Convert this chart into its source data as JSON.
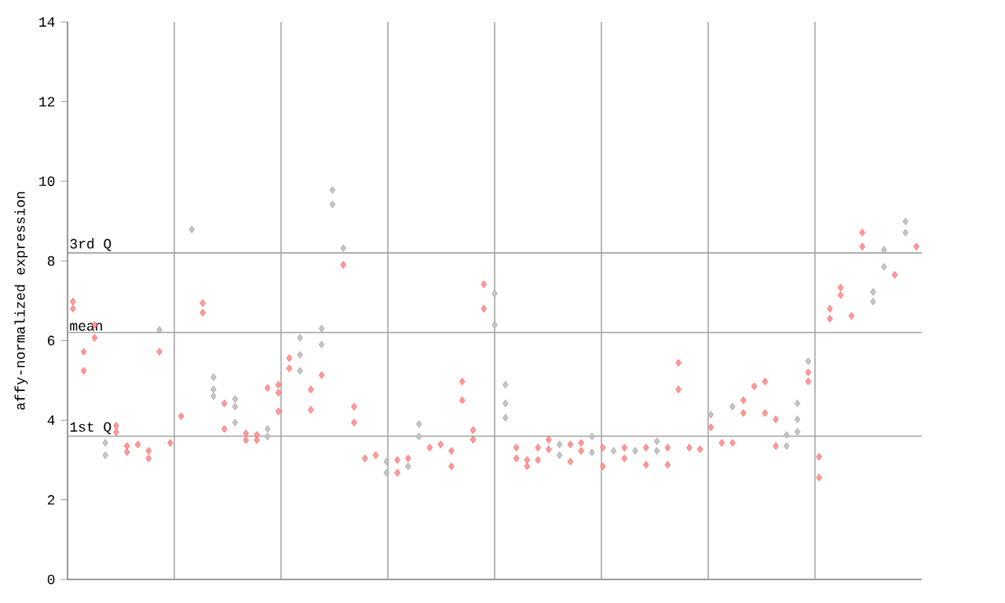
{
  "chart_data": {
    "type": "scatter",
    "ylabel": "affy-normalized expression",
    "categories": [
      null,
      null,
      null,
      null,
      null,
      null,
      null,
      null,
      null,
      null,
      null,
      null,
      null,
      null,
      null,
      null,
      null,
      null,
      null,
      null,
      null,
      null,
      null,
      null,
      null,
      null,
      null,
      null,
      null,
      null,
      null,
      null,
      null,
      null,
      null,
      null,
      null,
      null,
      null,
      null,
      null,
      null,
      null,
      null,
      null,
      null,
      null,
      null,
      null,
      null,
      null,
      null,
      null,
      null,
      null,
      null,
      null,
      null,
      null,
      null,
      null,
      null,
      null,
      null,
      null,
      null,
      null,
      null,
      null,
      null,
      null,
      null,
      null,
      null,
      null,
      null,
      null,
      null,
      null
    ],
    "ylim": [
      0,
      14
    ],
    "yticks": [
      0,
      2,
      4,
      6,
      8,
      10,
      12,
      14
    ],
    "grid": "x",
    "tick_labels": "y",
    "marker": "diamond",
    "ref_lines": [
      {
        "axis": "y",
        "value": 8.2,
        "label": "3rd Q",
        "color": "#a0a0a0"
      },
      {
        "axis": "y",
        "value": 6.2,
        "label": "mean",
        "color": "#a0a0a0"
      },
      {
        "axis": "y",
        "value": 3.6,
        "label": "1st Q",
        "color": "#a0a0a0"
      }
    ],
    "series": [
      {
        "color": "#a0a0a0",
        "values": [
          null,
          null,
          null,
          3.43,
          null,
          null,
          null,
          null,
          6.27,
          null,
          null,
          8.79,
          null,
          5.08,
          null,
          4.53,
          null,
          null,
          3.78,
          null,
          null,
          6.07,
          null,
          6.3,
          9.78,
          8.32,
          null,
          null,
          null,
          2.96,
          null,
          2.84,
          3.9,
          null,
          null,
          null,
          null,
          null,
          null,
          7.18,
          4.89,
          null,
          null,
          null,
          null,
          3.39,
          null,
          null,
          3.59,
          null,
          3.23,
          null,
          3.23,
          null,
          3.47,
          null,
          null,
          null,
          null,
          4.14,
          null,
          4.34,
          null,
          null,
          null,
          null,
          3.63,
          4.42,
          5.48,
          null,
          null,
          null,
          null,
          null,
          7.22,
          8.28,
          null,
          8.99,
          null
        ]
      },
      {
        "color": "#a0a0a0",
        "values": [
          null,
          null,
          null,
          3.12,
          null,
          null,
          null,
          null,
          null,
          null,
          null,
          null,
          null,
          4.77,
          null,
          4.34,
          null,
          null,
          3.59,
          null,
          null,
          5.64,
          null,
          5.9,
          9.42,
          null,
          null,
          null,
          null,
          2.68,
          null,
          null,
          3.59,
          null,
          null,
          null,
          null,
          null,
          null,
          6.39,
          4.42,
          null,
          null,
          null,
          null,
          3.12,
          null,
          null,
          3.19,
          null,
          null,
          null,
          null,
          null,
          3.23,
          null,
          null,
          null,
          null,
          null,
          null,
          null,
          null,
          null,
          null,
          null,
          3.35,
          4.02,
          null,
          null,
          null,
          null,
          null,
          null,
          6.98,
          7.85,
          null,
          8.71,
          null
        ]
      },
      {
        "color": "#a0a0a0",
        "values": [
          null,
          null,
          null,
          null,
          null,
          null,
          null,
          null,
          null,
          null,
          null,
          null,
          null,
          4.6,
          null,
          3.94,
          null,
          null,
          null,
          null,
          null,
          5.24,
          null,
          null,
          null,
          null,
          null,
          null,
          null,
          null,
          null,
          null,
          null,
          null,
          null,
          null,
          null,
          null,
          null,
          null,
          4.06,
          null,
          null,
          null,
          null,
          null,
          null,
          null,
          null,
          null,
          null,
          null,
          null,
          null,
          null,
          null,
          null,
          null,
          null,
          null,
          null,
          null,
          null,
          null,
          null,
          null,
          null,
          3.71,
          null,
          null,
          null,
          null,
          null,
          null,
          null,
          null,
          null,
          null,
          null
        ]
      },
      {
        "color": "#ff5a5a",
        "values": [
          6.98,
          5.72,
          6.39,
          null,
          3.86,
          3.35,
          3.39,
          3.23,
          5.72,
          3.43,
          4.1,
          null,
          6.94,
          null,
          4.42,
          null,
          3.67,
          3.63,
          4.81,
          4.89,
          5.56,
          null,
          4.77,
          5.13,
          null,
          7.9,
          4.34,
          3.04,
          3.12,
          null,
          3.0,
          3.04,
          null,
          3.31,
          3.39,
          3.23,
          4.97,
          3.75,
          7.41,
          null,
          null,
          3.31,
          3.0,
          3.31,
          3.51,
          null,
          3.39,
          3.43,
          null,
          3.31,
          null,
          3.31,
          null,
          3.31,
          null,
          3.31,
          5.44,
          3.31,
          3.27,
          3.82,
          3.43,
          3.43,
          4.5,
          4.85,
          4.97,
          4.02,
          null,
          null,
          5.2,
          3.08,
          6.8,
          7.33,
          6.62,
          8.71,
          null,
          null,
          7.65,
          null,
          8.36
        ]
      },
      {
        "color": "#ff5a5a",
        "values": [
          6.8,
          5.24,
          6.07,
          null,
          3.7,
          3.2,
          null,
          3.04,
          null,
          null,
          null,
          null,
          6.7,
          null,
          3.78,
          null,
          3.5,
          3.5,
          null,
          4.69,
          5.3,
          null,
          4.26,
          null,
          null,
          null,
          3.94,
          null,
          null,
          null,
          2.68,
          null,
          null,
          null,
          null,
          2.84,
          4.5,
          3.51,
          6.8,
          null,
          null,
          3.04,
          2.84,
          3.0,
          3.27,
          null,
          2.96,
          3.23,
          null,
          2.84,
          null,
          3.04,
          null,
          2.88,
          null,
          2.88,
          4.77,
          null,
          null,
          null,
          null,
          null,
          4.18,
          null,
          4.18,
          3.35,
          null,
          null,
          4.97,
          2.56,
          6.55,
          7.14,
          null,
          8.36,
          null,
          null,
          null,
          null,
          null
        ]
      },
      {
        "color": "#ff5a5a",
        "values": [
          null,
          null,
          null,
          null,
          null,
          null,
          null,
          null,
          null,
          null,
          null,
          null,
          null,
          null,
          null,
          null,
          null,
          null,
          null,
          4.22,
          null,
          null,
          null,
          null,
          null,
          null,
          null,
          null,
          null,
          null,
          null,
          null,
          null,
          null,
          null,
          null,
          null,
          null,
          null,
          null,
          null,
          null,
          null,
          null,
          null,
          null,
          null,
          null,
          null,
          null,
          null,
          null,
          null,
          null,
          null,
          null,
          null,
          null,
          null,
          null,
          null,
          null,
          null,
          null,
          null,
          null,
          null,
          null,
          null,
          null,
          null,
          null,
          null,
          null,
          null,
          null,
          null,
          null,
          null
        ]
      }
    ]
  }
}
